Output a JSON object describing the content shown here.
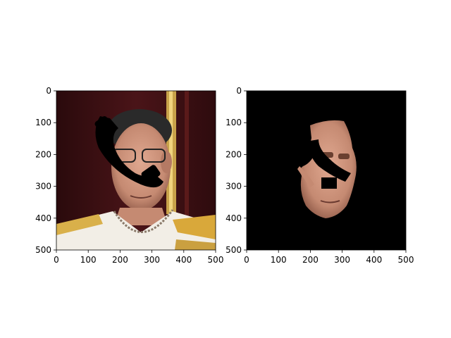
{
  "figure": {
    "background": "#ffffff"
  },
  "chart_data": [
    {
      "type": "image",
      "title": "",
      "xlabel": "",
      "ylabel": "",
      "xlim": [
        0,
        500
      ],
      "ylim": [
        500,
        0
      ],
      "xticks": [
        0,
        100,
        200,
        300,
        400,
        500
      ],
      "yticks": [
        0,
        100,
        200,
        300,
        400,
        500
      ],
      "grid": false,
      "content": "portrait photo with a black occlusion mask over part of the face",
      "colors": {
        "background_curtain": "#3a0f12",
        "gold_pillar": "#c8a24a",
        "uniform": "#f2eee6",
        "skin": "#c9907a",
        "mask": "#000000"
      }
    },
    {
      "type": "image",
      "title": "",
      "xlabel": "",
      "ylabel": "",
      "xlim": [
        0,
        500
      ],
      "ylim": [
        500,
        0
      ],
      "xticks": [
        0,
        100,
        200,
        300,
        400,
        500
      ],
      "yticks": [
        0,
        100,
        200,
        300,
        400,
        500
      ],
      "grid": false,
      "content": "segmented face region on black background",
      "colors": {
        "background": "#000000",
        "skin": "#c9907a"
      }
    }
  ]
}
